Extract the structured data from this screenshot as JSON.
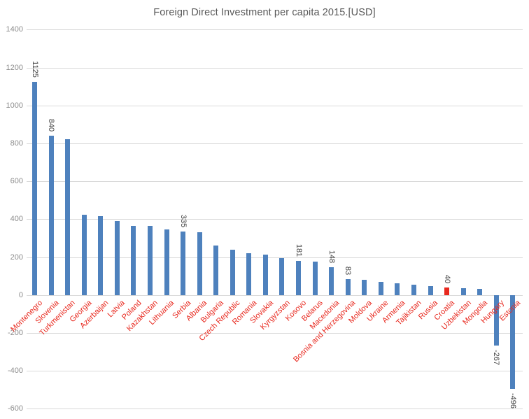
{
  "title": "Foreign Direct Investment per capita 2015.[USD]",
  "colors": {
    "bar_blue": "#4e81bd",
    "highlight_red": "#e8281e",
    "category_text_red": "#e8281e",
    "gridline_gray": "#d9d9d9",
    "axis_text_gray": "#8c8c8c",
    "data_label_gray": "#404040",
    "title_gray": "#595959",
    "background": "#ffffff"
  },
  "chart_data": {
    "type": "bar",
    "title": "Foreign Direct Investment per capita 2015.[USD]",
    "xlabel": "",
    "ylabel": "",
    "ylim": [
      -600,
      1400
    ],
    "yticks": [
      1400,
      1200,
      1000,
      800,
      600,
      400,
      200,
      0,
      -200,
      -400,
      -600
    ],
    "grid": true,
    "legend": false,
    "category_label_style": "red, rotated 45 degrees",
    "data_label_style": "rotated 90 degrees, shown only on selected bars",
    "points": [
      {
        "category": "Montenegro",
        "value": 1125,
        "label": "1125",
        "color": "blue"
      },
      {
        "category": "Slovenia",
        "value": 840,
        "label": "840",
        "color": "blue"
      },
      {
        "category": "Turkmenistan",
        "value": 820,
        "label": null,
        "color": "blue"
      },
      {
        "category": "Georgia",
        "value": 422,
        "label": null,
        "color": "blue"
      },
      {
        "category": "Azerbaijan",
        "value": 415,
        "label": null,
        "color": "blue"
      },
      {
        "category": "Latvia",
        "value": 390,
        "label": null,
        "color": "blue"
      },
      {
        "category": "Poland",
        "value": 366,
        "label": null,
        "color": "blue"
      },
      {
        "category": "Kazakhstan",
        "value": 364,
        "label": null,
        "color": "blue"
      },
      {
        "category": "Lithuania",
        "value": 345,
        "label": null,
        "color": "blue"
      },
      {
        "category": "Serbia",
        "value": 335,
        "label": "335",
        "color": "blue"
      },
      {
        "category": "Albania",
        "value": 332,
        "label": null,
        "color": "blue"
      },
      {
        "category": "Bulgaria",
        "value": 262,
        "label": null,
        "color": "blue"
      },
      {
        "category": "Czech Republic",
        "value": 237,
        "label": null,
        "color": "blue"
      },
      {
        "category": "Romania",
        "value": 222,
        "label": null,
        "color": "blue"
      },
      {
        "category": "Slovakia",
        "value": 213,
        "label": null,
        "color": "blue"
      },
      {
        "category": "Kyrgyzstan",
        "value": 194,
        "label": null,
        "color": "blue"
      },
      {
        "category": "Kosovo",
        "value": 181,
        "label": "181",
        "color": "blue"
      },
      {
        "category": "Belarus",
        "value": 177,
        "label": null,
        "color": "blue"
      },
      {
        "category": "Macedonia",
        "value": 148,
        "label": "148",
        "color": "blue"
      },
      {
        "category": "Bosnia and Herzegovina",
        "value": 83,
        "label": "83",
        "color": "blue"
      },
      {
        "category": "Moldova",
        "value": 80,
        "label": null,
        "color": "blue"
      },
      {
        "category": "Ukraine",
        "value": 70,
        "label": null,
        "color": "blue"
      },
      {
        "category": "Armenia",
        "value": 61,
        "label": null,
        "color": "blue"
      },
      {
        "category": "Tajikistan",
        "value": 53,
        "label": null,
        "color": "blue"
      },
      {
        "category": "Russia",
        "value": 48,
        "label": null,
        "color": "blue"
      },
      {
        "category": "Croatia",
        "value": 40,
        "label": "40",
        "color": "highlight"
      },
      {
        "category": "Uzbekistan",
        "value": 36,
        "label": null,
        "color": "blue"
      },
      {
        "category": "Mongolia",
        "value": 32,
        "label": null,
        "color": "blue"
      },
      {
        "category": "Hungary",
        "value": -267,
        "label": "-267",
        "color": "blue"
      },
      {
        "category": "Estonia",
        "value": -496,
        "label": "-496",
        "color": "blue"
      }
    ]
  }
}
